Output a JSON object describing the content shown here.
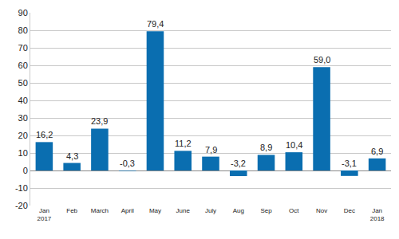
{
  "chart_data": {
    "type": "bar",
    "categories": [
      "Jan\n2017",
      "Feb",
      "March",
      "April",
      "May",
      "June",
      "July",
      "Aug",
      "Sep",
      "Oct",
      "Nov",
      "Dec",
      "Jan\n2018"
    ],
    "values": [
      16.2,
      4.3,
      23.9,
      -0.3,
      79.4,
      11.2,
      7.9,
      -3.2,
      8.9,
      10.4,
      59.0,
      -3.1,
      6.9
    ],
    "value_labels": [
      "16,2",
      "4,3",
      "23,9",
      "-0,3",
      "79,4",
      "11,2",
      "7,9",
      "-3,2",
      "8,9",
      "10,4",
      "59,0",
      "-3,1",
      "6,9"
    ],
    "data_labels": true,
    "color": "#0a6eb0",
    "ylim": [
      -20,
      90
    ],
    "yticks": [
      -20,
      -10,
      0,
      10,
      20,
      30,
      40,
      50,
      60,
      70,
      80,
      90
    ],
    "grid": true
  }
}
